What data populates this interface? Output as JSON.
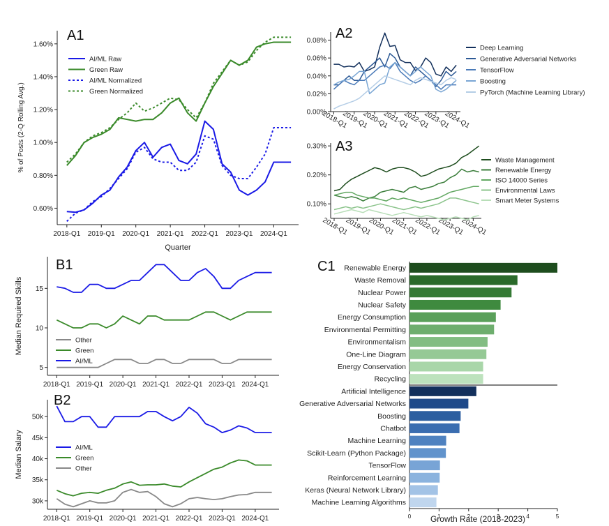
{
  "colors": {
    "blue": "#1a1ae6",
    "green": "#3a8a2a",
    "gray": "#888888",
    "axis": "#222222"
  },
  "chart_data": [
    {
      "panel": "A1",
      "type": "line",
      "x_ticks": [
        "2018-Q1",
        "2019-Q1",
        "2020-Q1",
        "2021-Q1",
        "2022-Q1",
        "2023-Q1",
        "2024-Q1"
      ],
      "xlabel": "Quarter",
      "ylabel": "% of Posts (2-Q Rolling Avg.)",
      "ylim": [
        0.5,
        1.68
      ],
      "yticks": [
        0.6,
        0.8,
        1.0,
        1.2,
        1.4,
        1.6
      ],
      "ytick_labels": [
        "0.60%",
        "0.80%",
        "1.00%",
        "1.20%",
        "1.40%",
        "1.60%"
      ],
      "x": [
        2018.0,
        2018.25,
        2018.5,
        2018.75,
        2019.0,
        2019.25,
        2019.5,
        2019.75,
        2020.0,
        2020.25,
        2020.5,
        2020.75,
        2021.0,
        2021.25,
        2021.5,
        2021.75,
        2022.0,
        2022.25,
        2022.5,
        2022.75,
        2023.0,
        2023.25,
        2023.5,
        2023.75,
        2024.0,
        2024.25,
        2024.5
      ],
      "series": [
        {
          "name": "AI/ML Raw",
          "color": "blue",
          "dash": false,
          "values": [
            0.58,
            0.575,
            0.59,
            0.63,
            0.68,
            0.71,
            0.79,
            0.85,
            0.95,
            1.0,
            0.91,
            0.97,
            0.99,
            0.89,
            0.87,
            0.93,
            1.13,
            1.08,
            0.87,
            0.82,
            0.71,
            0.68,
            0.71,
            0.76,
            0.88,
            0.88,
            0.88
          ]
        },
        {
          "name": "Green Raw",
          "color": "green",
          "dash": false,
          "values": [
            0.86,
            0.92,
            1.0,
            1.03,
            1.05,
            1.08,
            1.15,
            1.14,
            1.13,
            1.14,
            1.14,
            1.18,
            1.24,
            1.27,
            1.18,
            1.13,
            1.24,
            1.34,
            1.42,
            1.5,
            1.47,
            1.5,
            1.58,
            1.6,
            1.61,
            1.61,
            1.61
          ]
        },
        {
          "name": "AI/ML Normalized",
          "color": "blue",
          "dash": true,
          "values": [
            0.52,
            0.57,
            0.59,
            0.64,
            0.67,
            0.72,
            0.78,
            0.84,
            0.94,
            0.97,
            0.9,
            0.88,
            0.88,
            0.83,
            0.83,
            0.88,
            1.04,
            1.02,
            0.86,
            0.8,
            0.78,
            0.78,
            0.85,
            0.93,
            1.09,
            1.09,
            1.09
          ]
        },
        {
          "name": "Green Normalized",
          "color": "green",
          "dash": true,
          "values": [
            0.88,
            0.93,
            1.0,
            1.04,
            1.06,
            1.09,
            1.14,
            1.18,
            1.24,
            1.19,
            1.21,
            1.24,
            1.27,
            1.26,
            1.2,
            1.15,
            1.24,
            1.36,
            1.43,
            1.5,
            1.47,
            1.49,
            1.56,
            1.61,
            1.64,
            1.64,
            1.64
          ]
        }
      ]
    },
    {
      "panel": "A2",
      "type": "line",
      "x_ticks": [
        "2018-Q1",
        "2019-Q1",
        "2020-Q1",
        "2021-Q1",
        "2022-Q1",
        "2023-Q1",
        "2024-Q1"
      ],
      "ylim": [
        0.0,
        0.089
      ],
      "yticks": [
        0.0,
        0.02,
        0.04,
        0.06,
        0.08
      ],
      "ytick_labels": [
        "0.00%",
        "0.02%",
        "0.04%",
        "0.06%",
        "0.08%"
      ],
      "x": [
        2018.0,
        2018.25,
        2018.5,
        2018.75,
        2019.0,
        2019.25,
        2019.5,
        2019.75,
        2020.0,
        2020.25,
        2020.5,
        2020.75,
        2021.0,
        2021.25,
        2021.5,
        2021.75,
        2022.0,
        2022.25,
        2022.5,
        2022.75,
        2023.0,
        2023.25,
        2023.5,
        2023.75,
        2024.0
      ],
      "series": [
        {
          "name": "Deep Learning",
          "color": "#13305c",
          "values": [
            0.053,
            0.053,
            0.05,
            0.051,
            0.05,
            0.055,
            0.045,
            0.047,
            0.05,
            0.072,
            0.088,
            0.073,
            0.074,
            0.058,
            0.055,
            0.055,
            0.046,
            0.05,
            0.06,
            0.055,
            0.042,
            0.04,
            0.05,
            0.045,
            0.052
          ]
        },
        {
          "name": "Generative Adversarial Networks",
          "color": "#2d5a96",
          "values": [
            0.03,
            0.03,
            0.035,
            0.04,
            0.035,
            0.035,
            0.045,
            0.05,
            0.055,
            0.06,
            0.05,
            0.065,
            0.06,
            0.05,
            0.045,
            0.04,
            0.05,
            0.045,
            0.04,
            0.035,
            0.028,
            0.035,
            0.045,
            0.04,
            0.045
          ]
        },
        {
          "name": "TensorFlow",
          "color": "#4a7ab8",
          "values": [
            0.025,
            0.03,
            0.035,
            0.032,
            0.03,
            0.035,
            0.035,
            0.04,
            0.045,
            0.05,
            0.052,
            0.048,
            0.055,
            0.045,
            0.04,
            0.035,
            0.032,
            0.035,
            0.04,
            0.035,
            0.03,
            0.025,
            0.03,
            0.03,
            0.03
          ]
        },
        {
          "name": "Boosting",
          "color": "#7aa6d4",
          "values": [
            0.03,
            0.033,
            0.035,
            0.036,
            0.04,
            0.045,
            0.045,
            0.02,
            0.025,
            0.03,
            0.032,
            0.05,
            0.055,
            0.05,
            0.045,
            0.04,
            0.045,
            0.05,
            0.045,
            0.04,
            0.025,
            0.022,
            0.025,
            0.03,
            0.035
          ]
        },
        {
          "name": "PyTorch (Machine Learning Library)",
          "color": "#b4cde6",
          "values": [
            0.003,
            0.006,
            0.008,
            0.01,
            0.012,
            0.015,
            0.02,
            0.025,
            0.03,
            0.035,
            0.04,
            0.038,
            0.036,
            0.034,
            0.032,
            0.03,
            0.035,
            0.038,
            0.036,
            0.034,
            0.032,
            0.03,
            0.035,
            0.038,
            0.036
          ]
        }
      ]
    },
    {
      "panel": "A3",
      "type": "line",
      "x_ticks": [
        "2018-Q1",
        "2019-Q1",
        "2020-Q1",
        "2021-Q1",
        "2022-Q1",
        "2023-Q1",
        "2024-Q1"
      ],
      "ylim": [
        0.05,
        0.31
      ],
      "yticks": [
        0.1,
        0.2,
        0.3
      ],
      "ytick_labels": [
        "0.10%",
        "0.20%",
        "0.30%"
      ],
      "x": [
        2018.0,
        2018.25,
        2018.5,
        2018.75,
        2019.0,
        2019.25,
        2019.5,
        2019.75,
        2020.0,
        2020.25,
        2020.5,
        2020.75,
        2021.0,
        2021.25,
        2021.5,
        2021.75,
        2022.0,
        2022.25,
        2022.5,
        2022.75,
        2023.0,
        2023.25,
        2023.5,
        2023.75,
        2024.0,
        2024.25
      ],
      "series": [
        {
          "name": "Waste Management",
          "color": "#1e4d1e",
          "values": [
            0.145,
            0.15,
            0.17,
            0.185,
            0.195,
            0.205,
            0.215,
            0.225,
            0.22,
            0.21,
            0.22,
            0.225,
            0.225,
            0.22,
            0.21,
            0.195,
            0.2,
            0.21,
            0.22,
            0.225,
            0.23,
            0.24,
            0.26,
            0.27,
            0.285,
            0.3
          ]
        },
        {
          "name": "Renewable Energy",
          "color": "#3a7d3a",
          "values": [
            0.13,
            0.125,
            0.12,
            0.125,
            0.12,
            0.11,
            0.12,
            0.125,
            0.14,
            0.145,
            0.15,
            0.145,
            0.14,
            0.155,
            0.16,
            0.15,
            0.155,
            0.16,
            0.17,
            0.175,
            0.19,
            0.2,
            0.22,
            0.21,
            0.215,
            0.21
          ]
        },
        {
          "name": "ISO 14000 Series",
          "color": "#62a862",
          "values": [
            0.13,
            0.135,
            0.14,
            0.14,
            0.13,
            0.125,
            0.12,
            0.12,
            0.115,
            0.11,
            0.12,
            0.115,
            0.12,
            0.115,
            0.11,
            0.105,
            0.11,
            0.115,
            0.12,
            0.13,
            0.14,
            0.145,
            0.15,
            0.155,
            0.16,
            0.16
          ]
        },
        {
          "name": "Environmental Laws",
          "color": "#8cc48c",
          "values": [
            0.08,
            0.085,
            0.09,
            0.085,
            0.09,
            0.085,
            0.09,
            0.095,
            0.1,
            0.095,
            0.09,
            0.085,
            0.08,
            0.085,
            0.09,
            0.085,
            0.09,
            0.095,
            0.1,
            0.11,
            0.12,
            0.12,
            0.115,
            0.11,
            0.105,
            0.1
          ]
        },
        {
          "name": "Smart Meter Systems",
          "color": "#b8deb8",
          "values": [
            0.065,
            0.07,
            0.075,
            0.08,
            0.075,
            0.07,
            0.08,
            0.075,
            0.07,
            0.065,
            0.06,
            0.065,
            0.07,
            0.065,
            0.06,
            0.055,
            0.06,
            0.055,
            0.05,
            0.045,
            0.05,
            0.055,
            0.05,
            0.045,
            0.055,
            0.06
          ]
        }
      ]
    },
    {
      "panel": "B1",
      "type": "line",
      "x_ticks": [
        "2018-Q1",
        "2019-Q1",
        "2020-Q1",
        "2021-Q1",
        "2022-Q1",
        "2023-Q1",
        "2024-Q1"
      ],
      "ylabel": "Median Required Skills",
      "ylim": [
        4,
        19
      ],
      "yticks": [
        5,
        10,
        15
      ],
      "ytick_labels": [
        "5",
        "10",
        "15"
      ],
      "x": [
        2018.0,
        2018.25,
        2018.5,
        2018.75,
        2019.0,
        2019.25,
        2019.5,
        2019.75,
        2020.0,
        2020.25,
        2020.5,
        2020.75,
        2021.0,
        2021.25,
        2021.5,
        2021.75,
        2022.0,
        2022.25,
        2022.5,
        2022.75,
        2023.0,
        2023.25,
        2023.5,
        2023.75,
        2024.0,
        2024.25,
        2024.5
      ],
      "series": [
        {
          "name": "Other",
          "color": "gray",
          "values": [
            5,
            5,
            5,
            5,
            5,
            5,
            5.5,
            6,
            6,
            6,
            5.5,
            5.5,
            6,
            6,
            5.5,
            5.5,
            6,
            6,
            6,
            6,
            5.5,
            5.5,
            6,
            6,
            6,
            6,
            6
          ]
        },
        {
          "name": "Green",
          "color": "green",
          "values": [
            11,
            10.5,
            10,
            10,
            10.5,
            10.5,
            10,
            10.5,
            11.5,
            11,
            10.5,
            11.5,
            11.5,
            11,
            11,
            11,
            11,
            11.5,
            12,
            12,
            11.5,
            11,
            11.5,
            12,
            12,
            12,
            12
          ]
        },
        {
          "name": "AI/ML",
          "color": "blue",
          "values": [
            15.2,
            15,
            14.5,
            14.5,
            15.5,
            15.5,
            15,
            15,
            15.5,
            16,
            16,
            17,
            18,
            18,
            17,
            16,
            16,
            17,
            17.5,
            16.5,
            15,
            15,
            16,
            16.5,
            17,
            17,
            17
          ]
        }
      ]
    },
    {
      "panel": "B2",
      "type": "line",
      "x_ticks": [
        "2018-Q1",
        "2019-Q1",
        "2020-Q1",
        "2021-Q1",
        "2022-Q1",
        "2023-Q1",
        "2024-Q1"
      ],
      "ylabel": "Median Salary",
      "ylim": [
        28000,
        54000
      ],
      "yticks": [
        30000,
        35000,
        40000,
        45000,
        50000
      ],
      "ytick_labels": [
        "30k",
        "35k",
        "40k",
        "45k",
        "50k"
      ],
      "x": [
        2018.0,
        2018.25,
        2018.5,
        2018.75,
        2019.0,
        2019.25,
        2019.5,
        2019.75,
        2020.0,
        2020.25,
        2020.5,
        2020.75,
        2021.0,
        2021.25,
        2021.5,
        2021.75,
        2022.0,
        2022.25,
        2022.5,
        2022.75,
        2023.0,
        2023.25,
        2023.5,
        2023.75,
        2024.0,
        2024.25,
        2024.5
      ],
      "series": [
        {
          "name": "AI/ML",
          "color": "blue",
          "values": [
            52500,
            48800,
            48800,
            50000,
            50000,
            47500,
            47500,
            50000,
            50000,
            50000,
            50000,
            51200,
            51200,
            50000,
            49000,
            50000,
            52200,
            50800,
            48300,
            47500,
            46200,
            46800,
            47800,
            47300,
            46200,
            46200,
            46200
          ]
        },
        {
          "name": "Green",
          "color": "green",
          "values": [
            32500,
            31700,
            31200,
            31800,
            32000,
            31800,
            32500,
            33000,
            34000,
            34500,
            33700,
            33800,
            33800,
            34000,
            33500,
            33300,
            34500,
            35500,
            36500,
            37500,
            38000,
            39000,
            39700,
            39500,
            38500,
            38500,
            38500
          ]
        },
        {
          "name": "Other",
          "color": "gray",
          "values": [
            30500,
            29200,
            28600,
            29300,
            30000,
            29500,
            29500,
            30000,
            32000,
            32700,
            32000,
            32200,
            31000,
            29300,
            28600,
            29300,
            30500,
            30800,
            30500,
            30300,
            30500,
            31000,
            31400,
            31500,
            32000,
            32000,
            32000
          ]
        }
      ]
    },
    {
      "panel": "C1",
      "type": "bar",
      "orientation": "horizontal",
      "xlabel": "Growth Rate (2018-2023)",
      "xlim": [
        0,
        5
      ],
      "xticks": [
        0,
        1,
        2,
        3,
        4,
        5
      ],
      "categories": [
        "Renewable Energy",
        "Waste Removal",
        "Nuclear Power",
        "Nuclear Safety",
        "Energy Consumption",
        "Environmental Permitting",
        "Environmentalism",
        "One-Line Diagram",
        "Energy Conservation",
        "Recycling",
        "Artificial Intelligence",
        "Generative Adversarial Networks",
        "Boosting",
        "Chatbot",
        "Machine Learning",
        "Scikit-Learn (Python Package)",
        "TensorFlow",
        "Reinforcement Learning",
        "Keras (Neural Network Library)",
        "Machine Learning Algorithms"
      ],
      "values": [
        5.0,
        3.65,
        3.45,
        3.08,
        2.92,
        2.86,
        2.64,
        2.6,
        2.49,
        2.49,
        2.26,
        1.99,
        1.73,
        1.69,
        1.24,
        1.23,
        1.03,
        1.02,
        0.96,
        0.91
      ],
      "bar_colors": [
        "#1e4d1e",
        "#2a6a2a",
        "#357a35",
        "#3f8a3f",
        "#5aa05a",
        "#6eae6e",
        "#82bd82",
        "#95c995",
        "#a9d6a9",
        "#bde2bd",
        "#13305c",
        "#1f4a8a",
        "#2d5fa0",
        "#3a6db0",
        "#4f82c0",
        "#6193cc",
        "#78a4d6",
        "#8bb3de",
        "#a3c3e6",
        "#c0d6ee"
      ]
    }
  ],
  "panel_labels": {
    "a1": "A1",
    "a2": "A2",
    "a3": "A3",
    "b1": "B1",
    "b2": "B2",
    "c1": "C1"
  }
}
